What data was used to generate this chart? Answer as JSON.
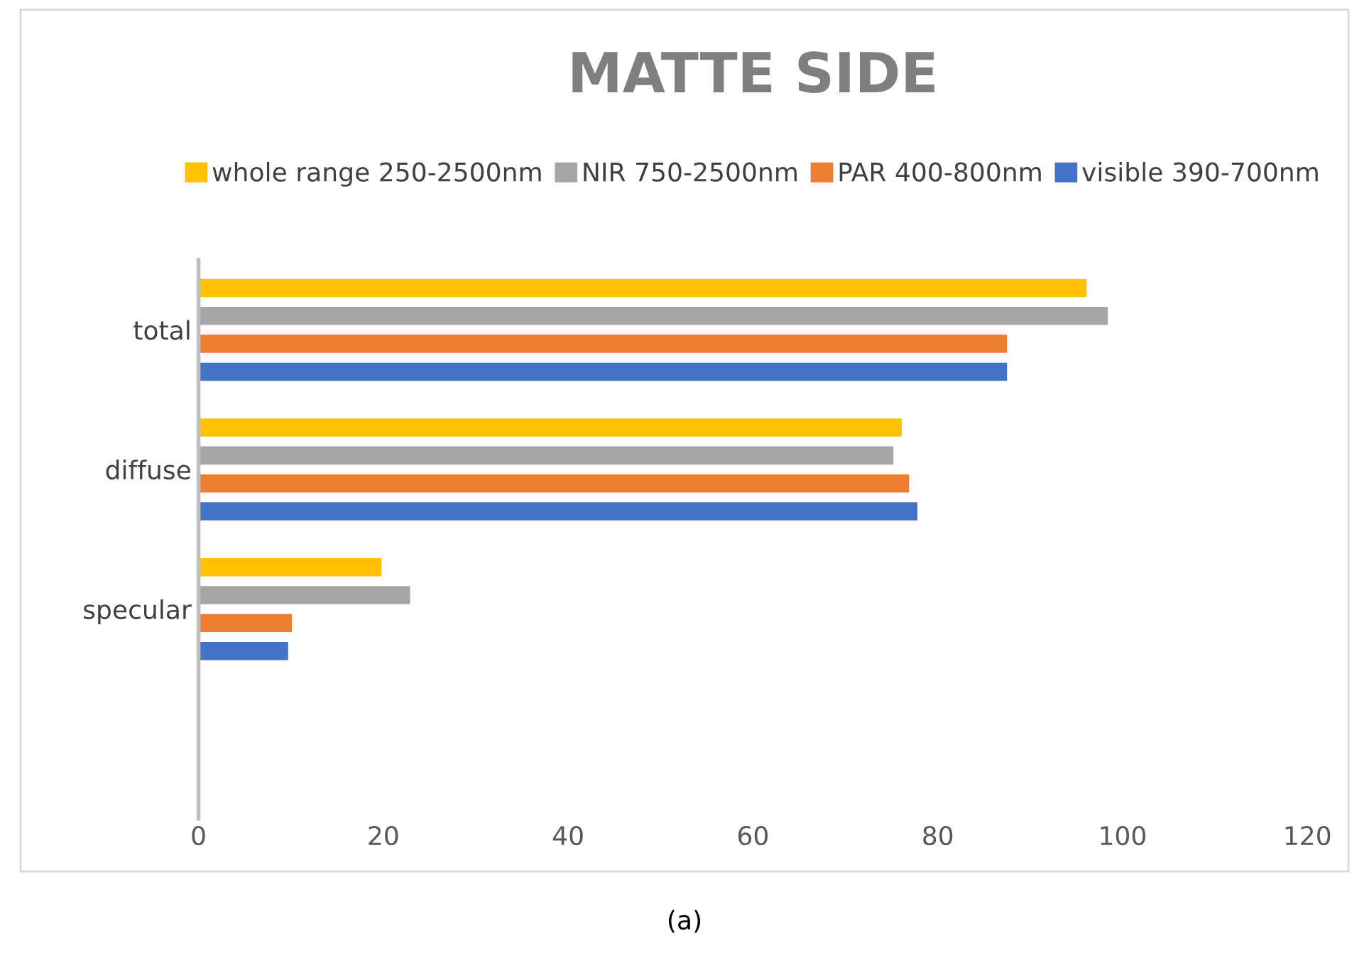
{
  "chart_data": {
    "type": "bar",
    "orientation": "horizontal",
    "title": "MATTE SIDE",
    "categories": [
      "total",
      "diffuse",
      "specular",
      null
    ],
    "series": [
      {
        "name": "whole range 250-2500nm",
        "color": "#ffc000",
        "values": [
          96.1,
          76.1,
          19.8,
          null
        ]
      },
      {
        "name": "NIR 750-2500nm",
        "color": "#a5a5a5",
        "values": [
          98.4,
          75.2,
          22.9,
          null
        ]
      },
      {
        "name": "PAR 400-800nm",
        "color": "#ed7d31",
        "values": [
          87.5,
          76.9,
          10.1,
          null
        ]
      },
      {
        "name": "visible 390-700nm",
        "color": "#4472c4",
        "values": [
          87.5,
          77.8,
          9.7,
          null
        ]
      }
    ],
    "xlim": [
      0,
      120
    ],
    "xticks": [
      0,
      20,
      40,
      60,
      80,
      100,
      120
    ],
    "grid": false,
    "legend": "top",
    "annotations": [
      "(a)"
    ]
  }
}
